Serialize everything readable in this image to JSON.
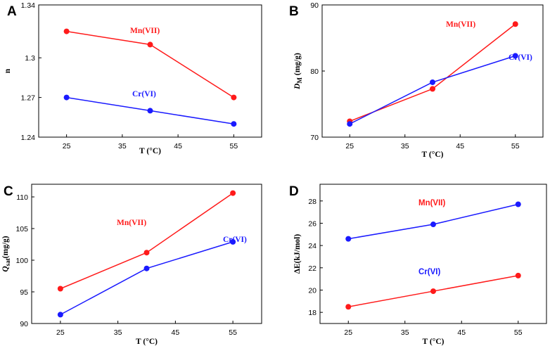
{
  "figure_title": "Four-panel figure: n, D_M, Q_sat and ΔE versus temperature for Mn(VII) and Cr(VI)",
  "colors": {
    "Mn(VII)": "#ff1a1a",
    "Cr(VI)": "#1a1aff",
    "axis": "#000000"
  },
  "chart_data": [
    {
      "panel": "A",
      "type": "line",
      "title": "",
      "xlabel": "T (°C)",
      "ylabel": "n",
      "xlim": [
        20,
        60
      ],
      "ylim": [
        1.24,
        1.34
      ],
      "xticks": [
        25,
        35,
        45,
        55
      ],
      "xtick_labels": [
        "25",
        "35",
        "45",
        "55"
      ],
      "yticks": [
        1.24,
        1.27,
        1.3,
        1.34
      ],
      "ytick_labels": [
        "1.24",
        "1.27",
        "1.3",
        "1.34"
      ],
      "grid": false,
      "series": [
        {
          "name": "Mn(VII)",
          "label": "Mn(VII)",
          "color": "#ff1a1a",
          "x": [
            25,
            40,
            55
          ],
          "values": [
            1.32,
            1.31,
            1.27
          ]
        },
        {
          "name": "Cr(VI)",
          "label": "Cr(VI)",
          "color": "#1a1aff",
          "x": [
            25,
            40,
            55
          ],
          "values": [
            1.27,
            1.26,
            1.25
          ]
        }
      ]
    },
    {
      "panel": "B",
      "type": "line",
      "title": "",
      "xlabel": "T (°C)",
      "ylabel": "D_M (mg/g)",
      "ylabel_main": "D",
      "ylabel_sub": "M",
      "ylabel_rest": " (mg/g)",
      "xlim": [
        20,
        60
      ],
      "ylim": [
        70,
        90
      ],
      "xticks": [
        25,
        35,
        45,
        55
      ],
      "xtick_labels": [
        "25",
        "35",
        "45",
        "55"
      ],
      "yticks": [
        70,
        80,
        90
      ],
      "ytick_labels": [
        "70",
        "80",
        "90"
      ],
      "grid": false,
      "series": [
        {
          "name": "Mn(VII)",
          "label": "Mn(VII)",
          "color": "#ff1a1a",
          "x": [
            25,
            40,
            55
          ],
          "values": [
            72.4,
            77.3,
            87.1
          ]
        },
        {
          "name": "Cr(VI)",
          "label": "Cr(VI)",
          "color": "#1a1aff",
          "x": [
            25,
            40,
            55
          ],
          "values": [
            72.0,
            78.3,
            82.3
          ]
        }
      ]
    },
    {
      "panel": "C",
      "type": "line",
      "title": "",
      "xlabel": "T (°C)",
      "ylabel": "Q_sat(mg/g)",
      "ylabel_main": "Q",
      "ylabel_sub": "sat",
      "ylabel_rest": "(mg/g)",
      "xlim": [
        20,
        60
      ],
      "ylim": [
        90,
        112
      ],
      "xticks": [
        25,
        35,
        45,
        55
      ],
      "xtick_labels": [
        "25",
        "35",
        "45",
        "55"
      ],
      "yticks": [
        90,
        95,
        100,
        105,
        110
      ],
      "ytick_labels": [
        "90",
        "95",
        "100",
        "105",
        "110"
      ],
      "grid": false,
      "series": [
        {
          "name": "Mn(VII)",
          "label": "Mn(VII)",
          "color": "#ff1a1a",
          "x": [
            25,
            40,
            55
          ],
          "values": [
            95.5,
            101.2,
            110.6
          ]
        },
        {
          "name": "Cr(VI)",
          "label": "Cr(VI)",
          "color": "#1a1aff",
          "x": [
            25,
            40,
            55
          ],
          "values": [
            91.4,
            98.7,
            102.9
          ]
        }
      ]
    },
    {
      "panel": "D",
      "type": "line",
      "title": "",
      "xlabel": "T (°C)",
      "ylabel": "ΔE(kJ/mol)",
      "xlim": [
        20,
        60
      ],
      "ylim": [
        17,
        29.5
      ],
      "xticks": [
        25,
        35,
        45,
        55
      ],
      "xtick_labels": [
        "25",
        "35",
        "45",
        "55"
      ],
      "yticks": [
        18,
        20,
        22,
        24,
        26,
        28
      ],
      "ytick_labels": [
        "18",
        "20",
        "22",
        "24",
        "26",
        "28"
      ],
      "grid": false,
      "series": [
        {
          "name": "Mn(VII)",
          "label": "Mn(VII)",
          "color": "#ff1a1a",
          "x": [
            25,
            40,
            55
          ],
          "values": [
            18.5,
            19.9,
            21.3
          ]
        },
        {
          "name": "Cr(VI)",
          "label": "Cr(VI)",
          "color": "#1a1aff",
          "x": [
            25,
            40,
            55
          ],
          "values": [
            24.6,
            25.9,
            27.7
          ]
        }
      ]
    }
  ]
}
